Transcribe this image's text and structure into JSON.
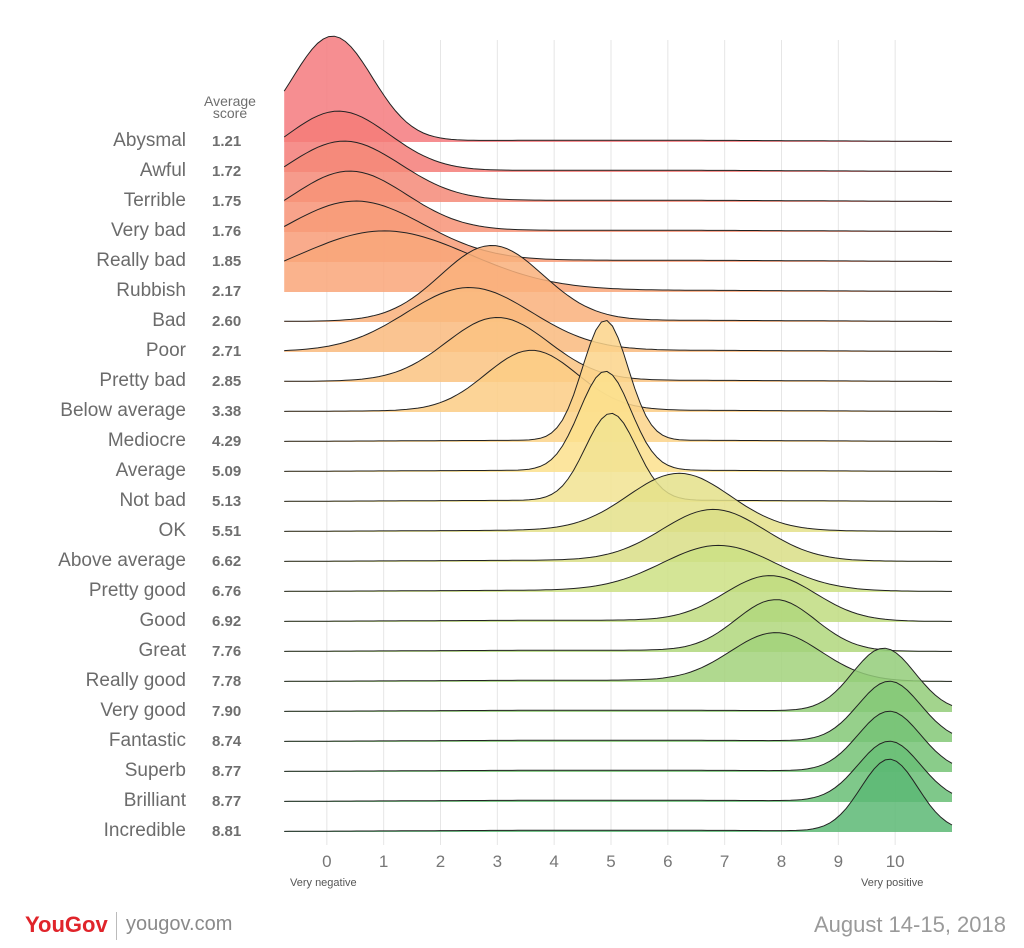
{
  "chart_data": {
    "type": "ridgeline",
    "score_header": "Average score",
    "x_ticks": [
      0,
      1,
      2,
      3,
      4,
      5,
      6,
      7,
      8,
      9,
      10
    ],
    "xlim": [
      -1,
      11
    ],
    "x_end_labels": {
      "left": "Very negative",
      "right": "Very positive"
    },
    "grid": "vertical",
    "rows": [
      {
        "label": "Abysmal",
        "score": "1.21",
        "peak": 0.1,
        "width": 0.7,
        "height": 1.75,
        "color": "#f57a7e"
      },
      {
        "label": "Awful",
        "score": "1.72",
        "peak": 0.2,
        "width": 0.9,
        "height": 1.0,
        "color": "#f57d78"
      },
      {
        "label": "Terrible",
        "score": "1.75",
        "peak": 0.3,
        "width": 1.0,
        "height": 1.0,
        "color": "#f58a78"
      },
      {
        "label": "Very bad",
        "score": "1.76",
        "peak": 0.4,
        "width": 1.0,
        "height": 1.0,
        "color": "#f79377"
      },
      {
        "label": "Really bad",
        "score": "1.85",
        "peak": 0.5,
        "width": 1.2,
        "height": 1.0,
        "color": "#f89c78"
      },
      {
        "label": "Rubbish",
        "score": "2.17",
        "peak": 1.0,
        "width": 1.5,
        "height": 1.0,
        "color": "#f9a679"
      },
      {
        "label": "Bad",
        "score": "2.60",
        "peak": 2.9,
        "width": 0.9,
        "height": 1.25,
        "color": "#f9b07b"
      },
      {
        "label": "Poor",
        "score": "2.71",
        "peak": 2.5,
        "width": 1.1,
        "height": 1.05,
        "color": "#f9ba7e"
      },
      {
        "label": "Pretty bad",
        "score": "2.85",
        "peak": 3.0,
        "width": 0.9,
        "height": 1.05,
        "color": "#fac381"
      },
      {
        "label": "Below average",
        "score": "3.38",
        "peak": 3.6,
        "width": 0.8,
        "height": 1.0,
        "color": "#fbcc85"
      },
      {
        "label": "Mediocre",
        "score": "4.29",
        "peak": 4.9,
        "width": 0.4,
        "height": 2.0,
        "color": "#fbd48a"
      },
      {
        "label": "Average",
        "score": "5.09",
        "peak": 4.9,
        "width": 0.45,
        "height": 1.65,
        "color": "#fbe08d"
      },
      {
        "label": "Not bad",
        "score": "5.13",
        "peak": 5.0,
        "width": 0.45,
        "height": 1.45,
        "color": "#f1e392"
      },
      {
        "label": "OK",
        "score": "5.51",
        "peak": 6.2,
        "width": 0.9,
        "height": 0.95,
        "color": "#e4e08a"
      },
      {
        "label": "Above average",
        "score": "6.62",
        "peak": 6.8,
        "width": 0.9,
        "height": 0.85,
        "color": "#d9de86"
      },
      {
        "label": "Pretty good",
        "score": "6.76",
        "peak": 6.9,
        "width": 1.0,
        "height": 0.75,
        "color": "#cde084"
      },
      {
        "label": "Good",
        "score": "6.92",
        "peak": 7.8,
        "width": 0.8,
        "height": 0.75,
        "color": "#c0dc80"
      },
      {
        "label": "Great",
        "score": "7.76",
        "peak": 7.9,
        "width": 0.7,
        "height": 0.85,
        "color": "#b0d77d"
      },
      {
        "label": "Really good",
        "score": "7.78",
        "peak": 7.9,
        "width": 0.8,
        "height": 0.8,
        "color": "#a2d27b"
      },
      {
        "label": "Very good",
        "score": "7.90",
        "peak": 9.8,
        "width": 0.55,
        "height": 1.05,
        "color": "#93cd79"
      },
      {
        "label": "Fantastic",
        "score": "8.74",
        "peak": 9.9,
        "width": 0.55,
        "height": 1.0,
        "color": "#84c877"
      },
      {
        "label": "Superb",
        "score": "8.77",
        "peak": 9.9,
        "width": 0.55,
        "height": 1.0,
        "color": "#76c376"
      },
      {
        "label": "Brilliant",
        "score": "8.77",
        "peak": 9.9,
        "width": 0.55,
        "height": 1.0,
        "color": "#68be75"
      },
      {
        "label": "Incredible",
        "score": "8.81",
        "peak": 9.9,
        "width": 0.5,
        "height": 1.2,
        "color": "#5cb874"
      }
    ]
  },
  "footer": {
    "brand_you": "You",
    "brand_gov": "Gov",
    "site": "yougov.com",
    "date": "August 14-15, 2018"
  }
}
